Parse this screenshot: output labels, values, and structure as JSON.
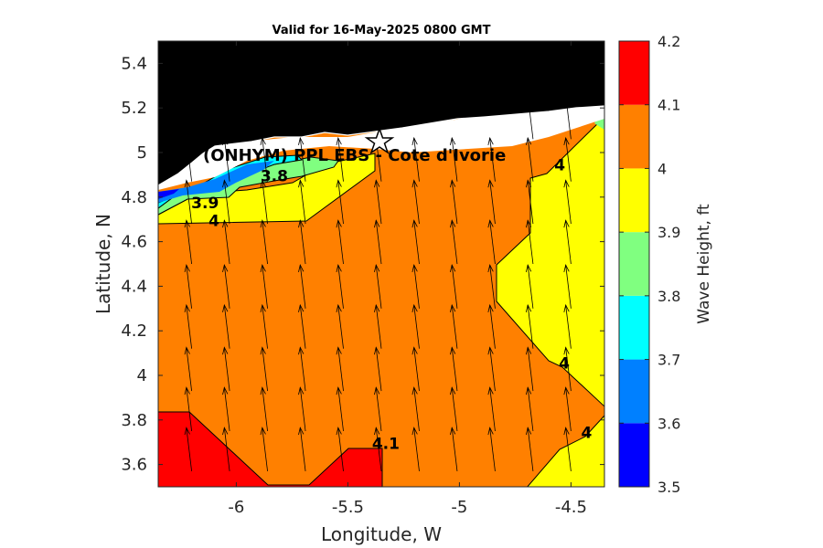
{
  "chart_data": {
    "type": "contour",
    "title": "Valid for 16-May-2025 0800 GMT",
    "xlabel": "Longitude, W",
    "ylabel": "Latitude, N",
    "xlim": [
      -6.35,
      -4.35
    ],
    "ylim": [
      3.5,
      5.5
    ],
    "x_ticks": [
      -6,
      -5.5,
      -5,
      -4.5
    ],
    "y_ticks": [
      3.6,
      3.8,
      4,
      4.2,
      4.4,
      4.6,
      4.8,
      5,
      5.2,
      5.4
    ],
    "colorbar": {
      "label": "Wave Height, ft",
      "levels": [
        3.5,
        3.6,
        3.7,
        3.8,
        3.9,
        4.0,
        4.1,
        4.2
      ],
      "tick_labels": [
        "3.5",
        "3.6",
        "3.7",
        "3.8",
        "3.9",
        "4",
        "4.1",
        "4.2"
      ],
      "colors": [
        "#0000ff",
        "#0080ff",
        "#00ffff",
        "#80ff80",
        "#ffff00",
        "#ff8000",
        "#ff0000"
      ]
    },
    "contour_labels": [
      {
        "text": "3.8",
        "lon": -5.83,
        "lat": 4.87
      },
      {
        "text": "3.9",
        "lon": -6.14,
        "lat": 4.75
      },
      {
        "text": "4",
        "lon": -6.1,
        "lat": 4.67
      },
      {
        "text": "4.1",
        "lon": -5.33,
        "lat": 3.67
      },
      {
        "text": "4",
        "lon": -4.55,
        "lat": 4.92
      },
      {
        "text": "4",
        "lon": -4.53,
        "lat": 4.03
      },
      {
        "text": "4",
        "lon": -4.43,
        "lat": 3.72
      }
    ],
    "site": {
      "label": "(ONHYM) PPL EBS  - Cote d'Ivorie",
      "lon": -5.34,
      "lat": 5.05
    },
    "vector_field": {
      "description": "wave direction arrows pointing roughly north",
      "x": [
        -6.2,
        -6.03,
        -5.86,
        -5.69,
        -5.52,
        -5.35,
        -5.18,
        -5.01,
        -4.84,
        -4.67,
        -4.5
      ],
      "y": [
        3.57,
        3.75,
        3.93,
        4.12,
        4.3,
        4.5,
        4.68,
        4.87,
        5.06
      ]
    },
    "colors": {
      "land": "#000000",
      "coast_band": "#ffffff"
    }
  }
}
